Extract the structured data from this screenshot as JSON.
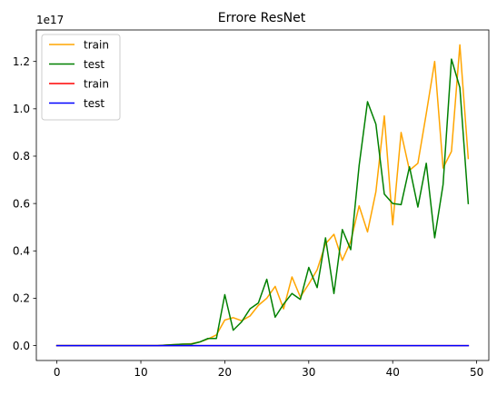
{
  "chart_data": {
    "type": "line",
    "title": "Errore ResNet",
    "y_offset_text": "1e17",
    "xlim": [
      -2.45,
      51.45
    ],
    "ylim": [
      -0.063,
      1.333
    ],
    "x_ticks": [
      0,
      10,
      20,
      30,
      40,
      50
    ],
    "x_tick_labels": [
      "0",
      "10",
      "20",
      "30",
      "40",
      "50"
    ],
    "y_ticks": [
      0.0,
      0.2,
      0.4,
      0.6,
      0.8,
      1.0,
      1.2
    ],
    "y_tick_labels": [
      "0.0",
      "0.2",
      "0.4",
      "0.6",
      "0.8",
      "1.0",
      "1.2"
    ],
    "grid": false,
    "legend_position": "top-left",
    "x": [
      0,
      1,
      2,
      3,
      4,
      5,
      6,
      7,
      8,
      9,
      10,
      11,
      12,
      13,
      14,
      15,
      16,
      17,
      18,
      19,
      20,
      21,
      22,
      23,
      24,
      25,
      26,
      27,
      28,
      29,
      30,
      31,
      32,
      33,
      34,
      35,
      36,
      37,
      38,
      39,
      40,
      41,
      42,
      43,
      44,
      45,
      46,
      47,
      48,
      49
    ],
    "series": [
      {
        "name": "train",
        "color": "#ffa500",
        "values": [
          0.0,
          0.0,
          0.0,
          0.0,
          0.0,
          0.0,
          0.0,
          0.0,
          0.0,
          0.0,
          0.0,
          0.0,
          0.0,
          0.002,
          0.004,
          0.006,
          0.008,
          0.015,
          0.028,
          0.045,
          0.108,
          0.118,
          0.105,
          0.125,
          0.17,
          0.2,
          0.25,
          0.155,
          0.29,
          0.205,
          0.26,
          0.32,
          0.43,
          0.47,
          0.36,
          0.44,
          0.59,
          0.48,
          0.65,
          0.97,
          0.51,
          0.9,
          0.74,
          0.77,
          0.98,
          1.2,
          0.75,
          0.82,
          1.27,
          0.79
        ]
      },
      {
        "name": "test",
        "color": "#008000",
        "values": [
          0.0,
          0.0,
          0.0,
          0.0,
          0.0,
          0.0,
          0.0,
          0.0,
          0.0,
          0.0,
          0.0,
          0.0,
          0.0,
          0.002,
          0.004,
          0.006,
          0.006,
          0.015,
          0.03,
          0.03,
          0.215,
          0.065,
          0.1,
          0.155,
          0.18,
          0.28,
          0.12,
          0.175,
          0.22,
          0.195,
          0.33,
          0.245,
          0.455,
          0.22,
          0.49,
          0.405,
          0.76,
          1.03,
          0.935,
          0.64,
          0.6,
          0.595,
          0.755,
          0.585,
          0.77,
          0.455,
          0.68,
          1.21,
          1.09,
          0.6
        ]
      },
      {
        "name": "train",
        "color": "#ff0000",
        "values": [
          0.0,
          0.0,
          0.0,
          0.0,
          0.0,
          0.0,
          0.0,
          0.0,
          0.0,
          0.0,
          0.0,
          0.0,
          0.0,
          0.0,
          0.0,
          0.0,
          0.0,
          0.0,
          0.0,
          0.0,
          0.0,
          0.0,
          0.0,
          0.0,
          0.0,
          0.0,
          0.0,
          0.0,
          0.0,
          0.0,
          0.0,
          0.0,
          0.0,
          0.0,
          0.0,
          0.0,
          0.0,
          0.0,
          0.0,
          0.0,
          0.0,
          0.0,
          0.0,
          0.0,
          0.0,
          0.0,
          0.0,
          0.0,
          0.0,
          0.0
        ]
      },
      {
        "name": "test",
        "color": "#0000ff",
        "values": [
          0.0,
          0.0,
          0.0,
          0.0,
          0.0,
          0.0,
          0.0,
          0.0,
          0.0,
          0.0,
          0.0,
          0.0,
          0.0,
          0.0,
          0.0,
          0.0,
          0.0,
          0.0,
          0.0,
          0.0,
          0.0,
          0.0,
          0.0,
          0.0,
          0.0,
          0.0,
          0.0,
          0.0,
          0.0,
          0.0,
          0.0,
          0.0,
          0.0,
          0.0,
          0.0,
          0.0,
          0.0,
          0.0,
          0.0,
          0.0,
          0.0,
          0.0,
          0.0,
          0.0,
          0.0,
          0.0,
          0.0,
          0.0,
          0.0,
          0.0
        ]
      }
    ]
  }
}
